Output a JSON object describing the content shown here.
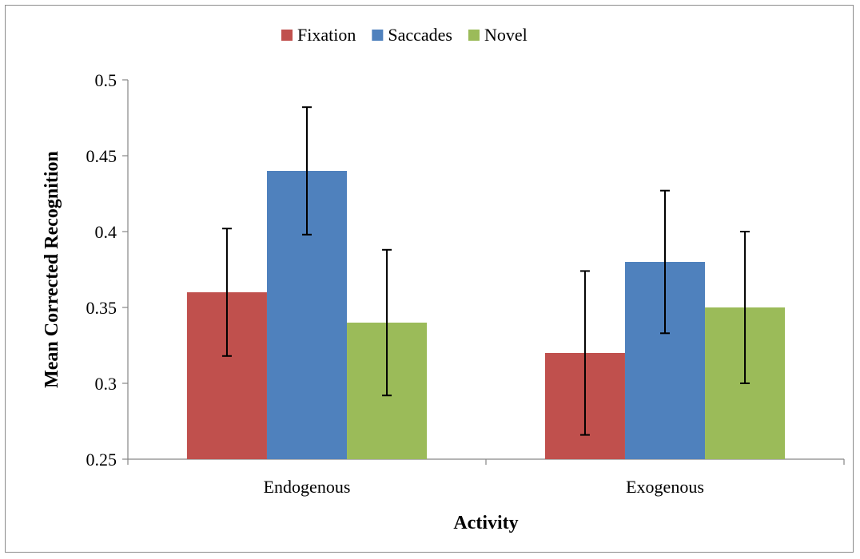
{
  "chart_data": {
    "type": "bar",
    "title": "",
    "xlabel": "Activity",
    "ylabel": "Mean Corrected Recognition",
    "ylim": [
      0.25,
      0.5
    ],
    "yticks": [
      0.25,
      0.3,
      0.35,
      0.4,
      0.45,
      0.5
    ],
    "ytick_labels": [
      "0.25",
      "0.3",
      "0.35",
      "0.4",
      "0.45",
      "0.5"
    ],
    "categories": [
      "Endogenous",
      "Exogenous"
    ],
    "series": [
      {
        "name": "Fixation",
        "color": "#c0504d",
        "values": [
          0.36,
          0.32
        ],
        "errors": [
          0.042,
          0.054
        ]
      },
      {
        "name": "Saccades",
        "color": "#4f81bd",
        "values": [
          0.44,
          0.38
        ],
        "errors": [
          0.042,
          0.047
        ]
      },
      {
        "name": "Novel",
        "color": "#9bbb59",
        "values": [
          0.34,
          0.35
        ],
        "errors": [
          0.048,
          0.05
        ]
      }
    ],
    "legend_position": "top-center",
    "grid": false
  }
}
